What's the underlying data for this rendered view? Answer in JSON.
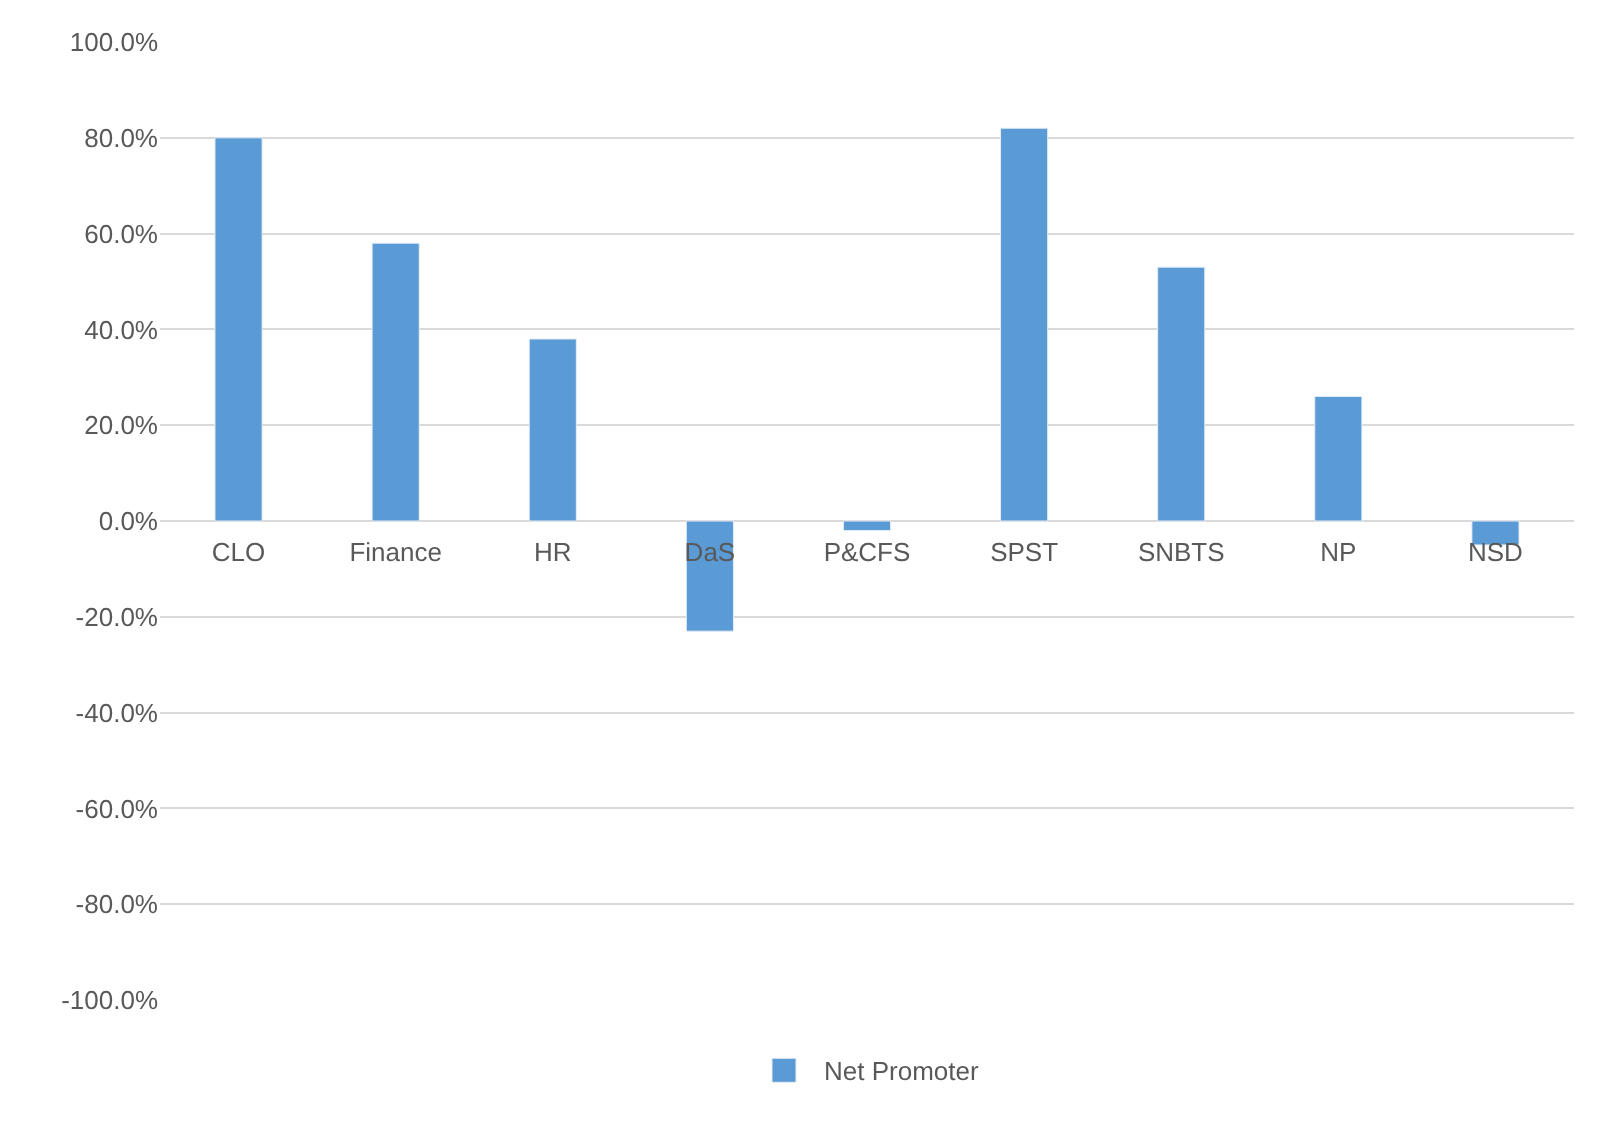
{
  "chart_data": {
    "type": "bar",
    "categories": [
      "CLO",
      "Finance",
      "HR",
      "DaS",
      "P&CFS",
      "SPST",
      "SNBTS",
      "NP",
      "NSD"
    ],
    "series": [
      {
        "name": "Net Promoter",
        "color": "#5b9bd5",
        "values": [
          80,
          58,
          38,
          -23,
          -2,
          82,
          53,
          26,
          -5
        ]
      }
    ],
    "ylim": [
      -100,
      100
    ],
    "yticks": [
      {
        "value": -100,
        "label": "-100.0%"
      },
      {
        "value": -80,
        "label": "-80.0%"
      },
      {
        "value": -60,
        "label": "-60.0%"
      },
      {
        "value": -40,
        "label": "-40.0%"
      },
      {
        "value": -20,
        "label": "-20.0%"
      },
      {
        "value": 0,
        "label": "0.0%"
      },
      {
        "value": 20,
        "label": "20.0%"
      },
      {
        "value": 40,
        "label": "40.0%"
      },
      {
        "value": 60,
        "label": "60.0%"
      },
      {
        "value": 80,
        "label": "80.0%"
      },
      {
        "value": 100,
        "label": "100.0%"
      }
    ],
    "grid": "y",
    "legend": "bottom"
  }
}
